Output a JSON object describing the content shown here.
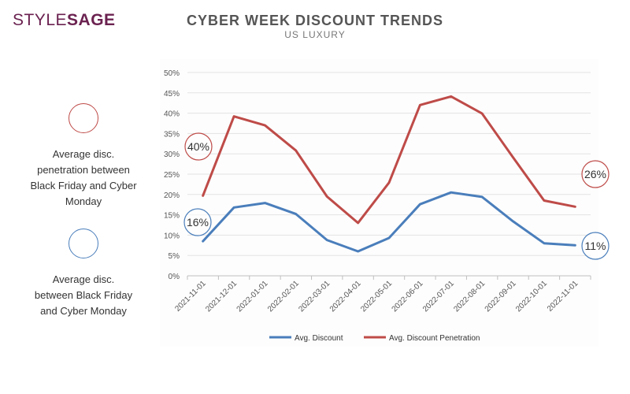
{
  "logo": {
    "part1": "STYLE",
    "part2": "SAGE"
  },
  "title": "CYBER WEEK DISCOUNT TRENDS",
  "subtitle": "US LUXURY",
  "side_legend": {
    "penetration_text": "Average disc. penetration between Black Friday and Cyber Monday",
    "discount_text": "Average disc. between Black Friday and Cyber Monday"
  },
  "colors": {
    "discount": "#4a7ebb",
    "penetration": "#be4b48"
  },
  "chart_data": {
    "type": "line",
    "title": "CYBER WEEK DISCOUNT TRENDS",
    "subtitle": "US LUXURY",
    "x": [
      "2021-11-01",
      "2021-12-01",
      "2022-01-01",
      "2022-02-01",
      "2022-03-01",
      "2022-04-01",
      "2022-05-01",
      "2022-06-01",
      "2022-07-01",
      "2022-08-01",
      "2022-09-01",
      "2022-10-01",
      "2022-11-01"
    ],
    "y_ticks": [
      "0%",
      "5%",
      "10%",
      "15%",
      "20%",
      "25%",
      "30%",
      "35%",
      "40%",
      "45%",
      "50%"
    ],
    "ylim": [
      0,
      50
    ],
    "grid": true,
    "legend_position": "bottom",
    "series": [
      {
        "name": "Avg. Discount",
        "color": "#4a7ebb",
        "values": [
          8.5,
          16.8,
          17.9,
          15.2,
          8.8,
          6.0,
          9.3,
          17.6,
          20.5,
          19.4,
          13.4,
          8.0,
          7.5
        ]
      },
      {
        "name": "Avg. Discount Penetration",
        "color": "#be4b48",
        "values": [
          19.7,
          39.2,
          37.0,
          30.8,
          19.5,
          13.0,
          22.9,
          42.0,
          44.1,
          39.9,
          29.1,
          18.5,
          17.0
        ]
      }
    ],
    "annotations": [
      {
        "text": "40%",
        "series": "Avg. Discount Penetration",
        "at": "start"
      },
      {
        "text": "26%",
        "series": "Avg. Discount Penetration",
        "at": "end"
      },
      {
        "text": "16%",
        "series": "Avg. Discount",
        "at": "start"
      },
      {
        "text": "11%",
        "series": "Avg. Discount",
        "at": "end"
      }
    ]
  }
}
